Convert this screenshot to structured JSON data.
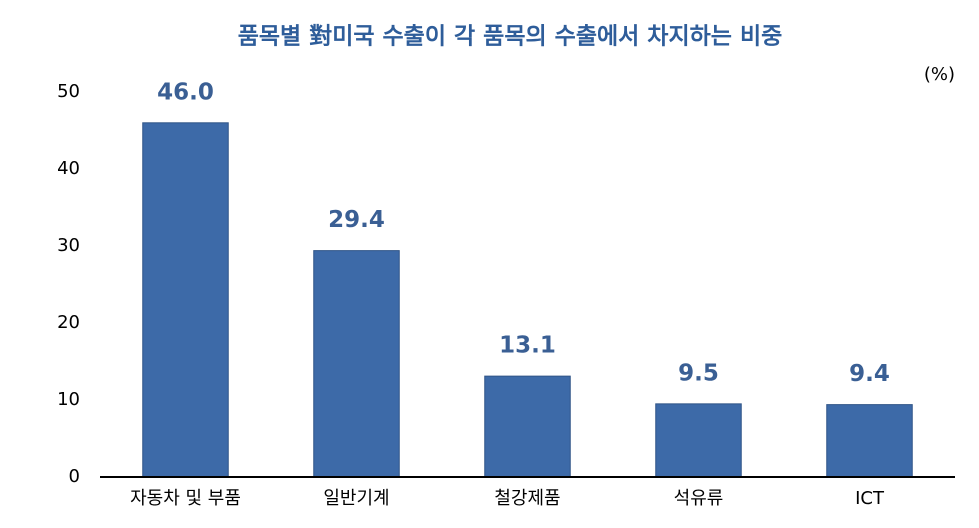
{
  "chart_data": {
    "type": "bar",
    "title": "품목별 對미국 수출이 각 품목의 수출에서 차지하는 비중",
    "unit_label": "(%)",
    "categories": [
      "자동차 및 부품",
      "일반기계",
      "철강제품",
      "석유류",
      "ICT"
    ],
    "values": [
      46.0,
      29.4,
      13.1,
      9.5,
      9.4
    ],
    "value_labels": [
      "46.0",
      "29.4",
      "13.1",
      "9.5",
      "9.4"
    ],
    "color": "#3d6aa8",
    "ylim": [
      0,
      50
    ],
    "yticks": [
      0,
      10,
      20,
      30,
      40,
      50
    ],
    "grid": false
  }
}
